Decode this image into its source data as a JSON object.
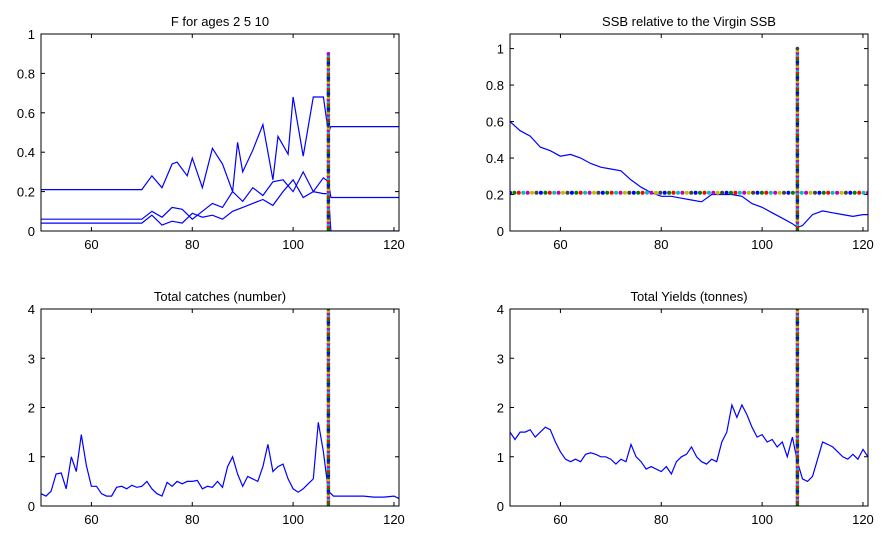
{
  "colors": {
    "line": "#0000ff",
    "marker_cycle": [
      "#0000ff",
      "#008000",
      "#ff0000",
      "#00bfbf",
      "#bf00bf",
      "#bfbf00",
      "#404040"
    ]
  },
  "chart_data": [
    {
      "type": "line",
      "title": "F for ages 2 5 10",
      "xlabel": "",
      "ylabel": "",
      "xlim": [
        50,
        121
      ],
      "ylim": [
        0,
        1
      ],
      "xticks": [
        60,
        80,
        100,
        120
      ],
      "yticks": [
        0,
        0.2,
        0.4,
        0.6,
        0.8,
        1
      ],
      "ytick_labels": [
        "0",
        "0.2",
        "0.4",
        "0.6",
        "0.8",
        "1"
      ],
      "grid": false,
      "series": [
        {
          "x": [
            50,
            70,
            72,
            74,
            76,
            77,
            79,
            80,
            82,
            84,
            86,
            88,
            89,
            90,
            92,
            94,
            96,
            97,
            99,
            100,
            102,
            104,
            106,
            107,
            107.5,
            121
          ],
          "y": [
            0.21,
            0.21,
            0.28,
            0.22,
            0.34,
            0.35,
            0.28,
            0.37,
            0.22,
            0.42,
            0.34,
            0.2,
            0.45,
            0.3,
            0.41,
            0.54,
            0.26,
            0.48,
            0.39,
            0.68,
            0.38,
            0.68,
            0.68,
            0.5,
            0.53,
            0.53
          ]
        },
        {
          "x": [
            50,
            70,
            72,
            74,
            76,
            78,
            80,
            82,
            84,
            86,
            88,
            90,
            92,
            94,
            96,
            98,
            100,
            102,
            104,
            106,
            107,
            107.5,
            121
          ],
          "y": [
            0.06,
            0.06,
            0.1,
            0.07,
            0.12,
            0.11,
            0.06,
            0.1,
            0.14,
            0.12,
            0.2,
            0.15,
            0.22,
            0.18,
            0.25,
            0.26,
            0.2,
            0.3,
            0.2,
            0.27,
            0.25,
            0.17,
            0.17
          ]
        },
        {
          "x": [
            50,
            70,
            72,
            74,
            76,
            78,
            80,
            82,
            84,
            86,
            88,
            90,
            92,
            94,
            96,
            98,
            100,
            102,
            104,
            106,
            107,
            107.5,
            121
          ],
          "y": [
            0.04,
            0.04,
            0.08,
            0.03,
            0.05,
            0.04,
            0.09,
            0.07,
            0.08,
            0.06,
            0.1,
            0.12,
            0.14,
            0.16,
            0.13,
            0.2,
            0.26,
            0.17,
            0.2,
            0.19,
            0.19,
            0.0,
            0.0
          ]
        }
      ],
      "marker_lines": [
        {
          "orientation": "vertical",
          "x": 107,
          "from": 0,
          "to": 0.9
        }
      ]
    },
    {
      "type": "line",
      "title": "SSB relative to the Virgin SSB",
      "xlabel": "",
      "ylabel": "",
      "xlim": [
        50,
        121
      ],
      "ylim": [
        0,
        1.08
      ],
      "xticks": [
        60,
        80,
        100,
        120
      ],
      "yticks": [
        0,
        0.2,
        0.4,
        0.6,
        0.8,
        1
      ],
      "ytick_labels": [
        "0",
        "0.2",
        "0.4",
        "0.6",
        "0.8",
        "1"
      ],
      "grid": false,
      "series": [
        {
          "x": [
            50,
            52,
            54,
            56,
            58,
            60,
            62,
            64,
            66,
            68,
            70,
            72,
            74,
            76,
            78,
            80,
            82,
            84,
            86,
            88,
            90,
            92,
            94,
            96,
            98,
            100,
            102,
            104,
            106,
            107,
            108,
            110,
            112,
            114,
            116,
            118,
            120,
            121
          ],
          "y": [
            0.6,
            0.55,
            0.52,
            0.46,
            0.44,
            0.41,
            0.42,
            0.4,
            0.37,
            0.35,
            0.34,
            0.33,
            0.28,
            0.24,
            0.21,
            0.19,
            0.19,
            0.18,
            0.17,
            0.16,
            0.2,
            0.2,
            0.2,
            0.19,
            0.15,
            0.13,
            0.1,
            0.07,
            0.04,
            0.02,
            0.03,
            0.09,
            0.11,
            0.1,
            0.09,
            0.08,
            0.09,
            0.09
          ]
        }
      ],
      "marker_lines": [
        {
          "orientation": "horizontal",
          "y": 0.21,
          "from": 50,
          "to": 121
        },
        {
          "orientation": "vertical",
          "x": 107,
          "from": 0,
          "to": 1.0
        }
      ]
    },
    {
      "type": "line",
      "title": "Total catches (number)",
      "xlabel": "",
      "ylabel": "",
      "xlim": [
        50,
        121
      ],
      "ylim": [
        0,
        4
      ],
      "xticks": [
        60,
        80,
        100,
        120
      ],
      "yticks": [
        0,
        1,
        2,
        3,
        4
      ],
      "ytick_labels": [
        "0",
        "1",
        "2",
        "3",
        "4"
      ],
      "grid": false,
      "series": [
        {
          "x": [
            50,
            51,
            52,
            53,
            54,
            55,
            56,
            57,
            58,
            59,
            60,
            61,
            62,
            63,
            64,
            65,
            66,
            67,
            68,
            69,
            70,
            71,
            72,
            73,
            74,
            75,
            76,
            77,
            78,
            79,
            80,
            81,
            82,
            83,
            84,
            85,
            86,
            87,
            88,
            89,
            90,
            91,
            92,
            93,
            94,
            95,
            96,
            97,
            98,
            99,
            100,
            101,
            102,
            103,
            104,
            105,
            106,
            107,
            108,
            110,
            112,
            114,
            116,
            118,
            120,
            121
          ],
          "y": [
            0.25,
            0.2,
            0.3,
            0.65,
            0.67,
            0.35,
            1.0,
            0.7,
            1.45,
            0.82,
            0.4,
            0.4,
            0.25,
            0.2,
            0.2,
            0.38,
            0.4,
            0.35,
            0.42,
            0.38,
            0.4,
            0.5,
            0.35,
            0.25,
            0.2,
            0.48,
            0.4,
            0.5,
            0.45,
            0.5,
            0.5,
            0.52,
            0.35,
            0.4,
            0.38,
            0.5,
            0.38,
            0.8,
            1.0,
            0.65,
            0.4,
            0.6,
            0.55,
            0.5,
            0.8,
            1.25,
            0.7,
            0.8,
            0.85,
            0.55,
            0.35,
            0.28,
            0.35,
            0.45,
            0.55,
            1.7,
            1.1,
            0.3,
            0.2,
            0.2,
            0.2,
            0.2,
            0.18,
            0.18,
            0.2,
            0.15
          ]
        }
      ],
      "marker_lines": [
        {
          "orientation": "vertical",
          "x": 107,
          "from": 0,
          "to": 4.0
        }
      ]
    },
    {
      "type": "line",
      "title": "Total Yields (tonnes)",
      "xlabel": "",
      "ylabel": "",
      "xlim": [
        50,
        121
      ],
      "ylim": [
        0,
        4
      ],
      "xticks": [
        60,
        80,
        100,
        120
      ],
      "yticks": [
        0,
        1,
        2,
        3,
        4
      ],
      "ytick_labels": [
        "0",
        "1",
        "2",
        "3",
        "4"
      ],
      "grid": false,
      "series": [
        {
          "x": [
            50,
            51,
            52,
            53,
            54,
            55,
            56,
            57,
            58,
            59,
            60,
            61,
            62,
            63,
            64,
            65,
            66,
            67,
            68,
            69,
            70,
            71,
            72,
            73,
            74,
            75,
            76,
            77,
            78,
            79,
            80,
            81,
            82,
            83,
            84,
            85,
            86,
            87,
            88,
            89,
            90,
            91,
            92,
            93,
            94,
            95,
            96,
            97,
            98,
            99,
            100,
            101,
            102,
            103,
            104,
            105,
            106,
            107,
            108,
            109,
            110,
            111,
            112,
            113,
            114,
            115,
            116,
            117,
            118,
            119,
            120,
            121
          ],
          "y": [
            1.5,
            1.35,
            1.5,
            1.5,
            1.55,
            1.4,
            1.5,
            1.6,
            1.55,
            1.3,
            1.1,
            0.95,
            0.9,
            0.95,
            0.9,
            1.05,
            1.08,
            1.05,
            1.0,
            1.0,
            0.95,
            0.85,
            0.95,
            0.9,
            1.25,
            1.0,
            0.9,
            0.75,
            0.8,
            0.75,
            0.7,
            0.8,
            0.65,
            0.9,
            1.0,
            1.05,
            1.2,
            1.0,
            0.9,
            0.85,
            0.95,
            0.9,
            1.3,
            1.5,
            2.05,
            1.8,
            2.05,
            1.85,
            1.6,
            1.4,
            1.45,
            1.3,
            1.35,
            1.2,
            1.3,
            1.0,
            1.4,
            0.9,
            0.55,
            0.5,
            0.6,
            0.95,
            1.3,
            1.25,
            1.2,
            1.1,
            1.0,
            0.95,
            1.05,
            0.95,
            1.15,
            1.0
          ]
        }
      ],
      "marker_lines": [
        {
          "orientation": "vertical",
          "x": 107,
          "from": 0,
          "to": 4.0
        }
      ]
    }
  ]
}
